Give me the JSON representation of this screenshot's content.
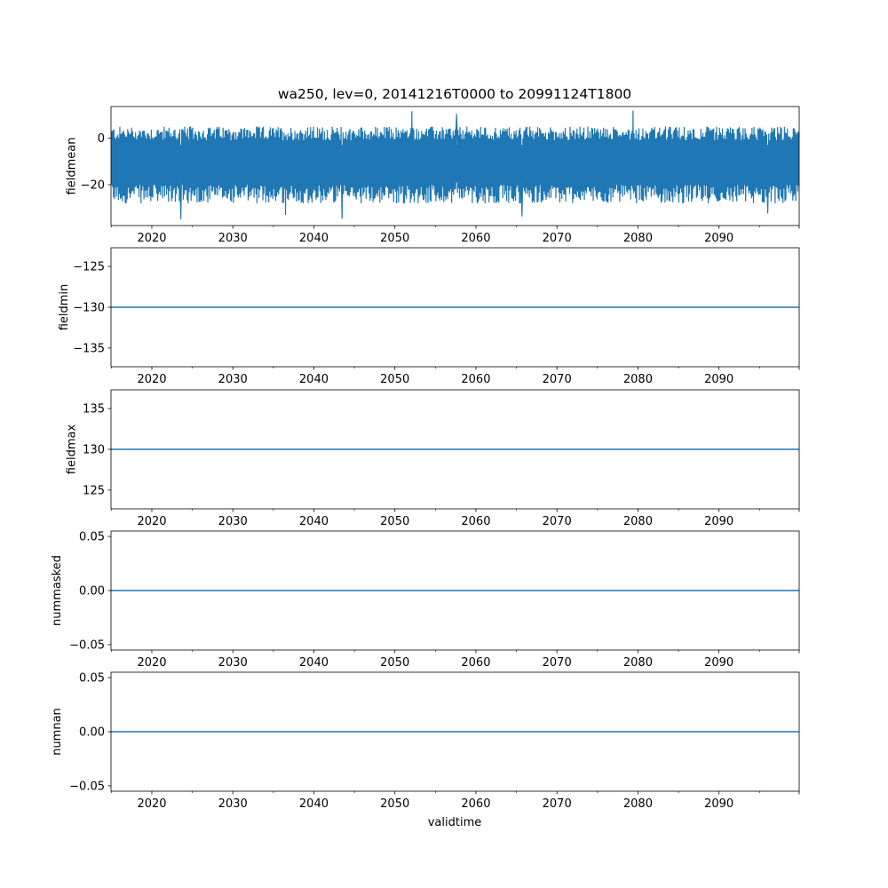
{
  "figure": {
    "title": "wa250, lev=0, 20141216T0000 to 20991124T1800",
    "xlabel": "validtime"
  },
  "colors": {
    "series": "#1f77b4",
    "axes": "#000000",
    "background": "#ffffff"
  },
  "chart_data": [
    {
      "type": "line",
      "name": "fieldmean",
      "ylabel": "fieldmean",
      "xlim": [
        2014.96,
        2099.9
      ],
      "ylim": [
        -37.5,
        13.5
      ],
      "x_ticks": [
        2020,
        2030,
        2040,
        2050,
        2060,
        2070,
        2080,
        2090
      ],
      "y_ticks": [
        0,
        -20
      ],
      "y_tick_labels": [
        "0",
        "−20"
      ],
      "series": [
        {
          "x_range": [
            2014.96,
            2099.9
          ],
          "band_center": -10,
          "band_upper_typical": 2,
          "band_lower_typical": -24,
          "max_approx": 12,
          "min_approx": -35,
          "max_points": [
            [
              2052.1,
              11.5
            ],
            [
              2079.4,
              11.8
            ],
            [
              2057.6,
              10.4
            ]
          ],
          "min_points": [
            [
              2023.6,
              -34.8
            ],
            [
              2043.5,
              -34.6
            ],
            [
              2065.7,
              -33.6
            ],
            [
              2036.5,
              -33.0
            ],
            [
              2096.0,
              -32.3
            ]
          ]
        }
      ]
    },
    {
      "type": "line",
      "name": "fieldmin",
      "ylabel": "fieldmin",
      "xlim": [
        2014.96,
        2099.9
      ],
      "ylim": [
        -137.3,
        -122.7
      ],
      "x_ticks": [
        2020,
        2030,
        2040,
        2050,
        2060,
        2070,
        2080,
        2090
      ],
      "y_ticks": [
        -125,
        -130,
        -135
      ],
      "y_tick_labels": [
        "−125",
        "−130",
        "−135"
      ],
      "series": [
        {
          "x": [
            2014.96,
            2099.9
          ],
          "y": [
            -130,
            -130
          ]
        }
      ]
    },
    {
      "type": "line",
      "name": "fieldmax",
      "ylabel": "fieldmax",
      "xlim": [
        2014.96,
        2099.9
      ],
      "ylim": [
        122.7,
        137.3
      ],
      "x_ticks": [
        2020,
        2030,
        2040,
        2050,
        2060,
        2070,
        2080,
        2090
      ],
      "y_ticks": [
        135,
        130,
        125
      ],
      "y_tick_labels": [
        "135",
        "130",
        "125"
      ],
      "series": [
        {
          "x": [
            2014.96,
            2099.9
          ],
          "y": [
            130,
            130
          ]
        }
      ]
    },
    {
      "type": "line",
      "name": "nummasked",
      "ylabel": "nummasked",
      "xlim": [
        2014.96,
        2099.9
      ],
      "ylim": [
        -0.055,
        0.055
      ],
      "x_ticks": [
        2020,
        2030,
        2040,
        2050,
        2060,
        2070,
        2080,
        2090
      ],
      "y_ticks": [
        0.05,
        0.0,
        -0.05
      ],
      "y_tick_labels": [
        "0.05",
        "0.00",
        "−0.05"
      ],
      "series": [
        {
          "x": [
            2014.96,
            2099.9
          ],
          "y": [
            0,
            0
          ]
        }
      ]
    },
    {
      "type": "line",
      "name": "numnan",
      "ylabel": "numnan",
      "xlim": [
        2014.96,
        2099.9
      ],
      "ylim": [
        -0.055,
        0.055
      ],
      "x_ticks": [
        2020,
        2030,
        2040,
        2050,
        2060,
        2070,
        2080,
        2090
      ],
      "y_ticks": [
        0.05,
        0.0,
        -0.05
      ],
      "y_tick_labels": [
        "0.05",
        "0.00",
        "−0.05"
      ],
      "series": [
        {
          "x": [
            2014.96,
            2099.9
          ],
          "y": [
            0,
            0
          ]
        }
      ]
    }
  ]
}
